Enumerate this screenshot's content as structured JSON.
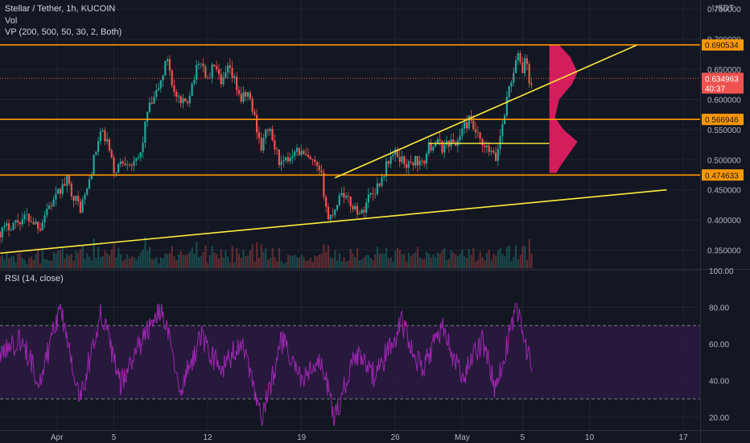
{
  "legend": {
    "title": "Stellar / Tether, 1h, KUCOIN",
    "vol": "Vol",
    "vp": "VP (200, 500, 50, 30, 2, Both)",
    "rsi": "RSI (14, close)"
  },
  "currency": "USDT",
  "colors": {
    "background": "#131722",
    "grid": "#1f2433",
    "up": "#26a69a",
    "down": "#ef5350",
    "level_line": "#ff9800",
    "trend_line": "#ffeb3b",
    "rsi_line": "#9c27b0",
    "rsi_band": "#2a1a3e",
    "volume_profile": "#e91e63"
  },
  "chart_data": [
    {
      "type": "candlestick",
      "symbol": "Stellar / Tether",
      "interval": "1h",
      "exchange": "KUCOIN",
      "x_tick_labels": [
        "Apr",
        "5",
        "12",
        "19",
        "26",
        "May",
        "5",
        "10",
        "17"
      ],
      "y_tick_labels": [
        "0.750000",
        "0.700000",
        "0.650000",
        "0.600000",
        "0.550000",
        "0.500000",
        "0.450000",
        "0.400000",
        "0.350000"
      ],
      "ylim": [
        0.32,
        0.765
      ],
      "close_path": [
        {
          "d": 0,
          "v": 0.38
        },
        {
          "d": 2,
          "v": 0.395
        },
        {
          "d": 4,
          "v": 0.405
        },
        {
          "d": 6,
          "v": 0.39
        },
        {
          "d": 7,
          "v": 0.42
        },
        {
          "d": 8,
          "v": 0.43
        },
        {
          "d": 9,
          "v": 0.45
        },
        {
          "d": 10,
          "v": 0.465
        },
        {
          "d": 11,
          "v": 0.44
        },
        {
          "d": 12,
          "v": 0.42
        },
        {
          "d": 13,
          "v": 0.45
        },
        {
          "d": 14,
          "v": 0.5
        },
        {
          "d": 15,
          "v": 0.545
        },
        {
          "d": 16,
          "v": 0.53
        },
        {
          "d": 17,
          "v": 0.48
        },
        {
          "d": 18,
          "v": 0.495
        },
        {
          "d": 19,
          "v": 0.5
        },
        {
          "d": 20,
          "v": 0.49
        },
        {
          "d": 21,
          "v": 0.51
        },
        {
          "d": 22,
          "v": 0.58
        },
        {
          "d": 23,
          "v": 0.6
        },
        {
          "d": 24,
          "v": 0.63
        },
        {
          "d": 25,
          "v": 0.67
        },
        {
          "d": 26,
          "v": 0.61
        },
        {
          "d": 27,
          "v": 0.59
        },
        {
          "d": 28,
          "v": 0.6
        },
        {
          "d": 29,
          "v": 0.64
        },
        {
          "d": 30,
          "v": 0.665
        },
        {
          "d": 31,
          "v": 0.63
        },
        {
          "d": 32,
          "v": 0.66
        },
        {
          "d": 33,
          "v": 0.62
        },
        {
          "d": 34,
          "v": 0.65
        },
        {
          "d": 35,
          "v": 0.63
        },
        {
          "d": 36,
          "v": 0.6
        },
        {
          "d": 37,
          "v": 0.61
        },
        {
          "d": 38,
          "v": 0.57
        },
        {
          "d": 39,
          "v": 0.52
        },
        {
          "d": 40,
          "v": 0.555
        },
        {
          "d": 41,
          "v": 0.52
        },
        {
          "d": 42,
          "v": 0.49
        },
        {
          "d": 43,
          "v": 0.5
        },
        {
          "d": 44,
          "v": 0.52
        },
        {
          "d": 45,
          "v": 0.51
        },
        {
          "d": 46,
          "v": 0.5
        },
        {
          "d": 47,
          "v": 0.49
        },
        {
          "d": 48,
          "v": 0.47
        },
        {
          "d": 49,
          "v": 0.4
        },
        {
          "d": 50,
          "v": 0.42
        },
        {
          "d": 51,
          "v": 0.45
        },
        {
          "d": 52,
          "v": 0.43
        },
        {
          "d": 53,
          "v": 0.42
        },
        {
          "d": 54,
          "v": 0.41
        },
        {
          "d": 55,
          "v": 0.44
        },
        {
          "d": 56,
          "v": 0.45
        },
        {
          "d": 57,
          "v": 0.47
        },
        {
          "d": 58,
          "v": 0.5
        },
        {
          "d": 59,
          "v": 0.51
        },
        {
          "d": 60,
          "v": 0.5
        },
        {
          "d": 61,
          "v": 0.49
        },
        {
          "d": 62,
          "v": 0.5
        },
        {
          "d": 63,
          "v": 0.49
        },
        {
          "d": 64,
          "v": 0.52
        },
        {
          "d": 65,
          "v": 0.53
        },
        {
          "d": 66,
          "v": 0.52
        },
        {
          "d": 67,
          "v": 0.53
        },
        {
          "d": 68,
          "v": 0.525
        },
        {
          "d": 69,
          "v": 0.55
        },
        {
          "d": 70,
          "v": 0.565
        },
        {
          "d": 71,
          "v": 0.545
        },
        {
          "d": 72,
          "v": 0.52
        },
        {
          "d": 73,
          "v": 0.515
        },
        {
          "d": 74,
          "v": 0.5
        },
        {
          "d": 75,
          "v": 0.56
        },
        {
          "d": 76,
          "v": 0.62
        },
        {
          "d": 77,
          "v": 0.66
        },
        {
          "d": 77.5,
          "v": 0.675
        },
        {
          "d": 78,
          "v": 0.645
        },
        {
          "d": 78.5,
          "v": 0.68
        },
        {
          "d": 79,
          "v": 0.62
        },
        {
          "d": 79.5,
          "v": 0.635
        }
      ],
      "price_levels": [
        {
          "name": "resistance",
          "value": 0.690534,
          "label": "0.690534"
        },
        {
          "name": "mid-level",
          "value": 0.566946,
          "label": "0.566946"
        },
        {
          "name": "support",
          "value": 0.474633,
          "label": "0.474633"
        }
      ],
      "last_price": {
        "value": 0.634963,
        "label": "0.634963",
        "countdown": "40:37"
      },
      "trendlines": [
        {
          "name": "lower-trendline",
          "p1": [
            0,
            0.345
          ],
          "p2": [
            99.5,
            0.45
          ]
        },
        {
          "name": "upper-trendline",
          "p1": [
            50,
            0.47
          ],
          "p2": [
            95,
            0.69
          ]
        }
      ],
      "horizontal_ray": {
        "d1": 64,
        "d2": 82,
        "v": 0.527
      },
      "volume_profile": {
        "d_start": 82,
        "max_width_days": 1.4,
        "rows": [
          {
            "v": 0.69,
            "w": 0.35
          },
          {
            "v": 0.67,
            "w": 0.75
          },
          {
            "v": 0.645,
            "w": 1.0
          },
          {
            "v": 0.625,
            "w": 0.8
          },
          {
            "v": 0.6,
            "w": 0.35
          },
          {
            "v": 0.57,
            "w": 0.2
          },
          {
            "v": 0.55,
            "w": 0.5
          },
          {
            "v": 0.53,
            "w": 1.0
          },
          {
            "v": 0.51,
            "w": 0.7
          },
          {
            "v": 0.49,
            "w": 0.4
          },
          {
            "v": 0.478,
            "w": 0.25
          }
        ]
      }
    },
    {
      "type": "line",
      "name": "RSI (14, close)",
      "y_tick_labels": [
        "100.00",
        "80.00",
        "60.00",
        "40.00",
        "20.00"
      ],
      "ylim": [
        13,
        100
      ],
      "band": [
        30,
        70
      ],
      "peaks": [
        {
          "d": 0,
          "v": 55
        },
        {
          "d": 3,
          "v": 62
        },
        {
          "d": 6,
          "v": 40
        },
        {
          "d": 9,
          "v": 80
        },
        {
          "d": 12,
          "v": 30
        },
        {
          "d": 15,
          "v": 78
        },
        {
          "d": 18,
          "v": 38
        },
        {
          "d": 21,
          "v": 60
        },
        {
          "d": 24,
          "v": 80
        },
        {
          "d": 27,
          "v": 35
        },
        {
          "d": 30,
          "v": 65
        },
        {
          "d": 33,
          "v": 45
        },
        {
          "d": 36,
          "v": 62
        },
        {
          "d": 39,
          "v": 18
        },
        {
          "d": 42,
          "v": 62
        },
        {
          "d": 45,
          "v": 40
        },
        {
          "d": 48,
          "v": 50
        },
        {
          "d": 50,
          "v": 20
        },
        {
          "d": 53,
          "v": 55
        },
        {
          "d": 56,
          "v": 42
        },
        {
          "d": 60,
          "v": 72
        },
        {
          "d": 63,
          "v": 45
        },
        {
          "d": 66,
          "v": 70
        },
        {
          "d": 69,
          "v": 40
        },
        {
          "d": 72,
          "v": 62
        },
        {
          "d": 74,
          "v": 35
        },
        {
          "d": 77,
          "v": 80
        },
        {
          "d": 79.5,
          "v": 46
        }
      ]
    }
  ]
}
